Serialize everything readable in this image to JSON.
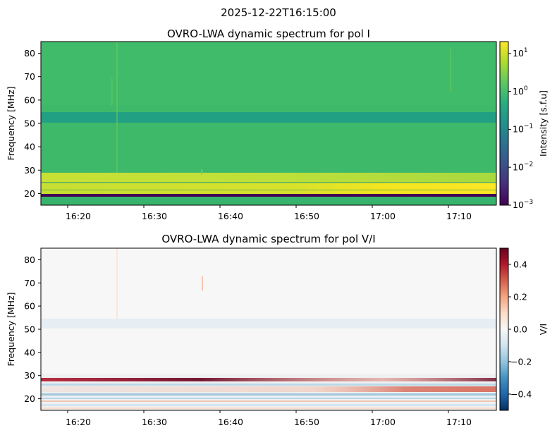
{
  "figure_title": "2025-12-22T16:15:00",
  "chart_data": [
    {
      "type": "heatmap",
      "title": "OVRO-LWA dynamic spectrum for pol I",
      "xlabel": "",
      "ylabel": "Frequency [MHz]",
      "x_range": [
        "16:15",
        "17:15"
      ],
      "ylim": [
        15,
        85
      ],
      "x_ticks": [
        "16:20",
        "16:30",
        "16:40",
        "16:50",
        "17:00",
        "17:10"
      ],
      "y_ticks": [
        20,
        30,
        40,
        50,
        60,
        70,
        80
      ],
      "colorbar": {
        "label": "Intensity [s.f.u]",
        "scale": "log",
        "range": [
          0.001,
          20
        ],
        "ticks": [
          "10^-3",
          "10^-2",
          "10^-1",
          "10^0",
          "10^1"
        ],
        "colormap": "viridis"
      },
      "features": [
        {
          "name": "background",
          "freq_range": [
            15,
            85
          ],
          "level": 1.5
        },
        {
          "name": "darker band",
          "freq_range": [
            50,
            54.5
          ],
          "level": 0.4
        },
        {
          "name": "bright band",
          "freq_range": [
            25,
            28
          ],
          "level": 12
        },
        {
          "name": "bright band",
          "freq_range": [
            20,
            25
          ],
          "level": 8
        },
        {
          "name": "dark line",
          "freq_range": [
            18.5,
            19.5
          ],
          "level": 0.001
        }
      ]
    },
    {
      "type": "heatmap",
      "title": "OVRO-LWA dynamic spectrum for pol V/I",
      "xlabel": "",
      "ylabel": "Frequency [MHz]",
      "x_range": [
        "16:15",
        "17:15"
      ],
      "ylim": [
        15,
        85
      ],
      "x_ticks": [
        "16:20",
        "16:30",
        "16:40",
        "16:50",
        "17:00",
        "17:10"
      ],
      "y_ticks": [
        20,
        30,
        40,
        50,
        60,
        70,
        80
      ],
      "colorbar": {
        "label": "V/I",
        "scale": "linear",
        "range": [
          -0.5,
          0.5
        ],
        "ticks": [
          "0.4",
          "0.2",
          "0.0",
          "−0.2",
          "−0.4"
        ],
        "colormap": "RdBu_r"
      },
      "features": [
        {
          "name": "background",
          "freq_range": [
            15,
            85
          ],
          "level": 0.0
        },
        {
          "name": "faint band",
          "freq_range": [
            50,
            54.5
          ],
          "level": -0.03
        },
        {
          "name": "red stripe",
          "freq_range": [
            27.5,
            28.5
          ],
          "level": 0.45
        },
        {
          "name": "mixed stripes",
          "freq_range": [
            16,
            27
          ],
          "level": 0.2
        }
      ]
    }
  ]
}
